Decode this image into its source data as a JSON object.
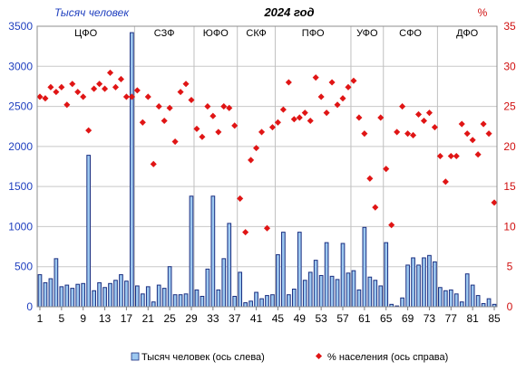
{
  "chart_data": {
    "type": "bar",
    "title": "2024 год",
    "left_axis_title": "Тысяч человек",
    "right_axis_title": "%",
    "x": {
      "min": 1,
      "max": 85,
      "ticks": [
        1,
        5,
        9,
        13,
        17,
        21,
        25,
        29,
        33,
        37,
        41,
        45,
        49,
        53,
        57,
        61,
        65,
        69,
        73,
        77,
        81,
        85
      ]
    },
    "y_left": {
      "min": 0,
      "max": 3500,
      "step": 500
    },
    "y_right": {
      "min": 0,
      "max": 35,
      "step": 5
    },
    "grid": "horizontal",
    "legend_position": "bottom",
    "bar_color": "#9cc8f0",
    "bar_border_color": "#1a2e80",
    "point_color": "#e01515",
    "districts": [
      {
        "label": "ЦФО",
        "start": 1,
        "end": 18
      },
      {
        "label": "СЗФ",
        "start": 19,
        "end": 29
      },
      {
        "label": "ЮФО",
        "start": 30,
        "end": 37
      },
      {
        "label": "СКФ",
        "start": 38,
        "end": 44
      },
      {
        "label": "ПФО",
        "start": 45,
        "end": 58
      },
      {
        "label": "УФО",
        "start": 59,
        "end": 64
      },
      {
        "label": "СФО",
        "start": 65,
        "end": 74
      },
      {
        "label": "ДФО",
        "start": 75,
        "end": 85
      }
    ],
    "series": [
      {
        "name": "Тысяч человек (ось слева)",
        "axis": "left",
        "kind": "bar",
        "values": [
          400,
          300,
          350,
          600,
          250,
          270,
          230,
          280,
          290,
          1890,
          200,
          300,
          240,
          290,
          330,
          400,
          320,
          3420,
          260,
          160,
          250,
          60,
          270,
          230,
          500,
          150,
          150,
          160,
          1380,
          210,
          130,
          470,
          1380,
          210,
          600,
          1040,
          130,
          430,
          50,
          70,
          180,
          100,
          140,
          150,
          650,
          930,
          150,
          220,
          930,
          330,
          430,
          580,
          390,
          800,
          380,
          340,
          790,
          420,
          450,
          210,
          990,
          370,
          330,
          260,
          800,
          30,
          10,
          110,
          520,
          610,
          520,
          610,
          640,
          560,
          240,
          200,
          210,
          160,
          60,
          410,
          270,
          140,
          40,
          100,
          30
        ]
      },
      {
        "name": "% населения (ось справа)",
        "axis": "right",
        "kind": "scatter",
        "values": [
          26.2,
          26.0,
          27.4,
          26.8,
          27.4,
          25.2,
          27.8,
          26.8,
          26.2,
          22.0,
          27.2,
          27.8,
          27.2,
          29.2,
          27.4,
          28.4,
          26.2,
          26.2,
          27.0,
          23.0,
          26.2,
          17.8,
          25.0,
          23.2,
          24.8,
          20.6,
          26.8,
          27.8,
          25.8,
          22.2,
          21.2,
          25.0,
          23.8,
          21.8,
          25.0,
          24.8,
          22.6,
          13.5,
          9.3,
          18.3,
          19.8,
          21.8,
          9.8,
          22.4,
          23.0,
          24.6,
          28.0,
          23.4,
          23.6,
          24.2,
          23.2,
          28.6,
          26.2,
          24.2,
          28.0,
          25.2,
          26.0,
          27.4,
          28.2,
          23.6,
          21.6,
          16.0,
          12.4,
          23.6,
          17.2,
          10.2,
          21.8,
          25.0,
          21.6,
          21.4,
          24.0,
          23.2,
          24.2,
          22.4,
          18.8,
          15.6,
          18.8,
          18.8,
          22.8,
          21.6,
          20.8,
          19.0,
          22.8,
          21.6,
          13.0
        ]
      }
    ]
  }
}
